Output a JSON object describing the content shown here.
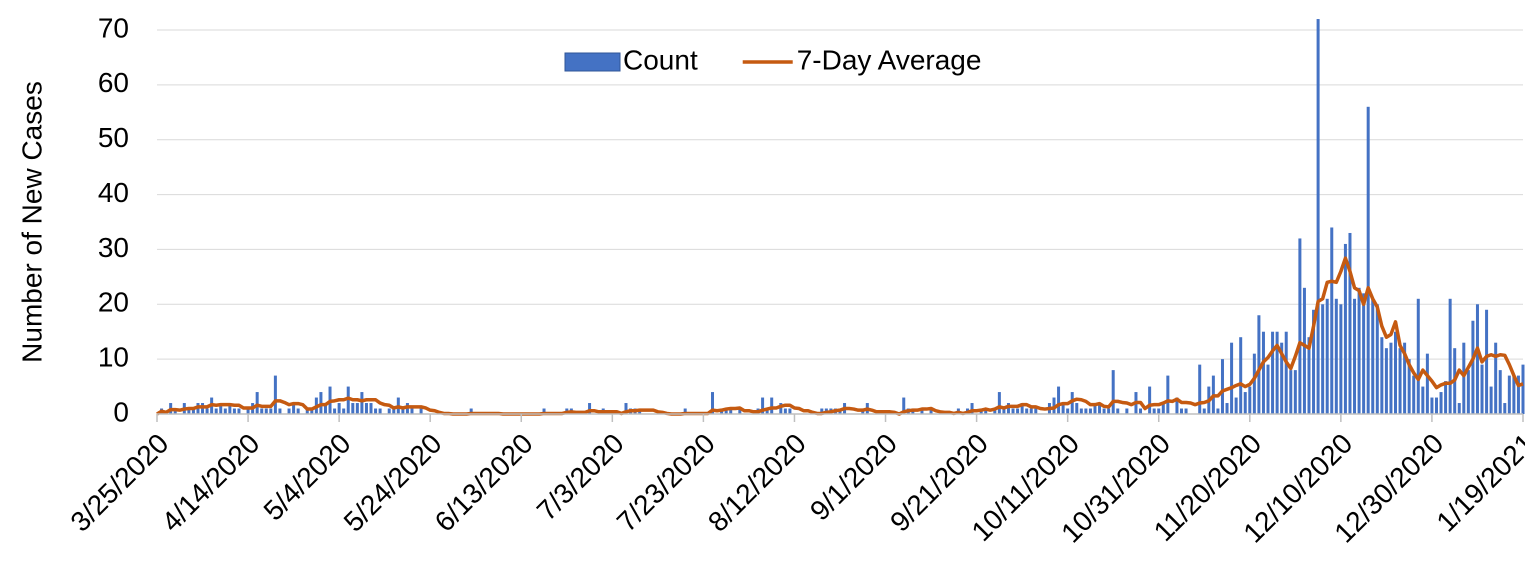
{
  "chart_data": {
    "type": "bar_line",
    "y_label": "Number of New Cases",
    "ylim": [
      0,
      70
    ],
    "yticks": [
      0,
      10,
      20,
      30,
      40,
      50,
      60,
      70
    ],
    "grid": true,
    "legend": "top",
    "categories": [
      "3/25/2020",
      null,
      null,
      null,
      null,
      null,
      null,
      null,
      null,
      null,
      null,
      null,
      null,
      null,
      null,
      null,
      null,
      null,
      null,
      null,
      "4/14/2020",
      null,
      null,
      null,
      null,
      null,
      null,
      null,
      null,
      null,
      null,
      null,
      null,
      null,
      null,
      null,
      null,
      null,
      null,
      null,
      "5/4/2020",
      null,
      null,
      null,
      null,
      null,
      null,
      null,
      null,
      null,
      null,
      null,
      null,
      null,
      null,
      null,
      null,
      null,
      null,
      null,
      "5/24/2020",
      null,
      null,
      null,
      null,
      null,
      null,
      null,
      null,
      null,
      null,
      null,
      null,
      null,
      null,
      null,
      null,
      null,
      null,
      null,
      "6/13/2020",
      null,
      null,
      null,
      null,
      null,
      null,
      null,
      null,
      null,
      null,
      null,
      null,
      null,
      null,
      null,
      null,
      null,
      null,
      null,
      "7/3/2020",
      null,
      null,
      null,
      null,
      null,
      null,
      null,
      null,
      null,
      null,
      null,
      null,
      null,
      null,
      null,
      null,
      null,
      null,
      null,
      "7/23/2020",
      null,
      null,
      null,
      null,
      null,
      null,
      null,
      null,
      null,
      null,
      null,
      null,
      null,
      null,
      null,
      null,
      null,
      null,
      null,
      "8/12/2020",
      null,
      null,
      null,
      null,
      null,
      null,
      null,
      null,
      null,
      null,
      null,
      null,
      null,
      null,
      null,
      null,
      null,
      null,
      null,
      "9/1/2020",
      null,
      null,
      null,
      null,
      null,
      null,
      null,
      null,
      null,
      null,
      null,
      null,
      null,
      null,
      null,
      null,
      null,
      null,
      null,
      "9/21/2020",
      null,
      null,
      null,
      null,
      null,
      null,
      null,
      null,
      null,
      null,
      null,
      null,
      null,
      null,
      null,
      null,
      null,
      null,
      null,
      "10/11/2020",
      null,
      null,
      null,
      null,
      null,
      null,
      null,
      null,
      null,
      null,
      null,
      null,
      null,
      null,
      null,
      null,
      null,
      null,
      null,
      "10/31/2020",
      null,
      null,
      null,
      null,
      null,
      null,
      null,
      null,
      null,
      null,
      null,
      null,
      null,
      null,
      null,
      null,
      null,
      null,
      null,
      "11/20/2020",
      null,
      null,
      null,
      null,
      null,
      null,
      null,
      null,
      null,
      null,
      null,
      null,
      null,
      null,
      null,
      null,
      null,
      null,
      null,
      "12/10/2020",
      null,
      null,
      null,
      null,
      null,
      null,
      null,
      null,
      null,
      null,
      null,
      null,
      null,
      null,
      null,
      null,
      null,
      null,
      null,
      "12/30/2020",
      null,
      null,
      null,
      null,
      null,
      null,
      null,
      null,
      null,
      null,
      null,
      null,
      null,
      null,
      null,
      null,
      null,
      null,
      null,
      "1/19/2021"
    ],
    "series": [
      {
        "name": "Count",
        "kind": "bar",
        "color": "#4472c4",
        "values": [
          0,
          1,
          0,
          2,
          1,
          0,
          2,
          1,
          1,
          2,
          2,
          1,
          3,
          1,
          2,
          1,
          2,
          1,
          1,
          0,
          1,
          2,
          4,
          1,
          1,
          1,
          7,
          1,
          0,
          1,
          2,
          1,
          0,
          1,
          1,
          3,
          4,
          2,
          5,
          1,
          2,
          1,
          5,
          2,
          2,
          4,
          2,
          2,
          1,
          1,
          0,
          1,
          1,
          3,
          1,
          2,
          1,
          0,
          1,
          0,
          0,
          0,
          0,
          0,
          0,
          0,
          0,
          0,
          0,
          1,
          0,
          0,
          0,
          0,
          0,
          0,
          0,
          0,
          0,
          0,
          0,
          0,
          0,
          0,
          0,
          1,
          0,
          0,
          0,
          0,
          1,
          1,
          0,
          0,
          0,
          2,
          0,
          0,
          1,
          0,
          0,
          0,
          0,
          2,
          1,
          1,
          1,
          0,
          0,
          0,
          0,
          0,
          0,
          0,
          0,
          0,
          1,
          0,
          0,
          0,
          0,
          0,
          4,
          0,
          1,
          1,
          1,
          0,
          1,
          0,
          0,
          0,
          1,
          3,
          1,
          3,
          0,
          2,
          1,
          1,
          0,
          0,
          0,
          0,
          0,
          0,
          1,
          1,
          1,
          1,
          1,
          2,
          0,
          0,
          0,
          1,
          2,
          0,
          0,
          0,
          0,
          0,
          0,
          0,
          3,
          1,
          1,
          0,
          1,
          0,
          1,
          0,
          0,
          0,
          0,
          0,
          1,
          0,
          1,
          2,
          0,
          1,
          1,
          0,
          1,
          4,
          1,
          2,
          1,
          1,
          2,
          1,
          1,
          1,
          0,
          0,
          2,
          3,
          5,
          2,
          1,
          4,
          2,
          1,
          1,
          1,
          2,
          2,
          1,
          1,
          8,
          1,
          0,
          1,
          0,
          4,
          1,
          0,
          5,
          1,
          1,
          2,
          7,
          0,
          3,
          1,
          1,
          0,
          0,
          9,
          1,
          5,
          7,
          1,
          10,
          2,
          13,
          3,
          14,
          4,
          5,
          11,
          18,
          15,
          9,
          15,
          15,
          13,
          15,
          8,
          8,
          32,
          23,
          14,
          19,
          72,
          20,
          21,
          34,
          21,
          20,
          31,
          33,
          21,
          23,
          22,
          56,
          21,
          20,
          14,
          12,
          13,
          15,
          12,
          13,
          10,
          7,
          21,
          5,
          11,
          3,
          3,
          4,
          6,
          21,
          12,
          2,
          13,
          8,
          17,
          20,
          9,
          19,
          5,
          13,
          8,
          2,
          7,
          7,
          7,
          9
        ]
      },
      {
        "name": "7-Day Average",
        "kind": "line",
        "color": "#c55a11",
        "values": [
          0,
          0.5,
          0.3,
          0.8,
          0.8,
          0.7,
          0.9,
          1.0,
          1.0,
          1.3,
          1.3,
          1.3,
          1.7,
          1.6,
          1.7,
          1.7,
          1.7,
          1.6,
          1.6,
          1.1,
          1.1,
          1.1,
          1.6,
          1.4,
          1.4,
          1.4,
          2.4,
          2.4,
          2.1,
          1.7,
          1.9,
          1.9,
          1.7,
          0.9,
          0.9,
          1.3,
          1.7,
          1.7,
          2.3,
          2.4,
          2.6,
          2.6,
          2.9,
          2.6,
          2.6,
          2.4,
          2.6,
          2.6,
          2.6,
          2.0,
          1.7,
          1.6,
          1.1,
          1.3,
          1.1,
          1.3,
          1.3,
          1.3,
          1.3,
          1.1,
          0.7,
          0.6,
          0.3,
          0.1,
          0.1,
          0,
          0,
          0,
          0,
          0.1,
          0.1,
          0.1,
          0.1,
          0.1,
          0.1,
          0.1,
          0,
          0,
          0,
          0,
          0,
          0,
          0,
          0,
          0,
          0.1,
          0.1,
          0.1,
          0.1,
          0.1,
          0.3,
          0.4,
          0.3,
          0.3,
          0.3,
          0.6,
          0.6,
          0.4,
          0.4,
          0.4,
          0.4,
          0.4,
          0.1,
          0.4,
          0.6,
          0.6,
          0.7,
          0.7,
          0.7,
          0.7,
          0.4,
          0.3,
          0.1,
          0,
          0,
          0,
          0.1,
          0.1,
          0.1,
          0.1,
          0.1,
          0.1,
          0.7,
          0.6,
          0.7,
          0.9,
          1.0,
          1.0,
          1.1,
          0.6,
          0.6,
          0.4,
          0.4,
          0.7,
          0.9,
          1.1,
          1.1,
          1.4,
          1.6,
          1.6,
          1.1,
          1.0,
          0.6,
          0.6,
          0.3,
          0.1,
          0.1,
          0.3,
          0.4,
          0.6,
          0.7,
          1.0,
          1.0,
          0.9,
          0.7,
          0.7,
          0.9,
          0.7,
          0.4,
          0.4,
          0.4,
          0.4,
          0.3,
          0,
          0.4,
          0.6,
          0.7,
          0.7,
          0.9,
          0.9,
          1.0,
          0.6,
          0.4,
          0.3,
          0.3,
          0.1,
          0.3,
          0.1,
          0.3,
          0.6,
          0.6,
          0.7,
          0.9,
          0.7,
          0.9,
          1.3,
          1.1,
          1.4,
          1.4,
          1.4,
          1.7,
          1.7,
          1.3,
          1.3,
          1.0,
          0.9,
          1.0,
          1.1,
          1.7,
          1.9,
          1.9,
          2.4,
          2.7,
          2.6,
          2.3,
          1.7,
          1.7,
          1.9,
          1.4,
          1.3,
          2.3,
          2.3,
          2.1,
          2.0,
          1.7,
          2.1,
          2.1,
          1.0,
          1.6,
          1.7,
          1.7,
          2.0,
          2.4,
          2.3,
          2.7,
          2.1,
          2.1,
          2.0,
          1.7,
          2.0,
          2.1,
          2.4,
          3.3,
          3.3,
          4.2,
          4.5,
          4.8,
          5.2,
          5.5,
          5.0,
          5.4,
          6.5,
          8.0,
          9.5,
          10.3,
          11.5,
          12.5,
          11.0,
          9.5,
          8.3,
          10.5,
          13.0,
          12.5,
          12.0,
          16.0,
          20.5,
          21.0,
          24.0,
          24.2,
          24.0,
          26.0,
          28.4,
          26.0,
          23.0,
          22.5,
          20.0,
          23.0,
          21.0,
          19.5,
          16.0,
          14.0,
          14.5,
          16.8,
          12.5,
          11.0,
          9.0,
          7.5,
          6.3,
          8.0,
          7.0,
          6.0,
          4.8,
          5.3,
          5.6,
          5.6,
          6.2,
          8.0,
          7.0,
          8.5,
          10.0,
          12.0,
          9.5,
          10.5,
          10.8,
          10.5,
          10.8,
          10.7,
          9.0,
          7.0,
          5.2,
          5.5
        ]
      }
    ]
  }
}
